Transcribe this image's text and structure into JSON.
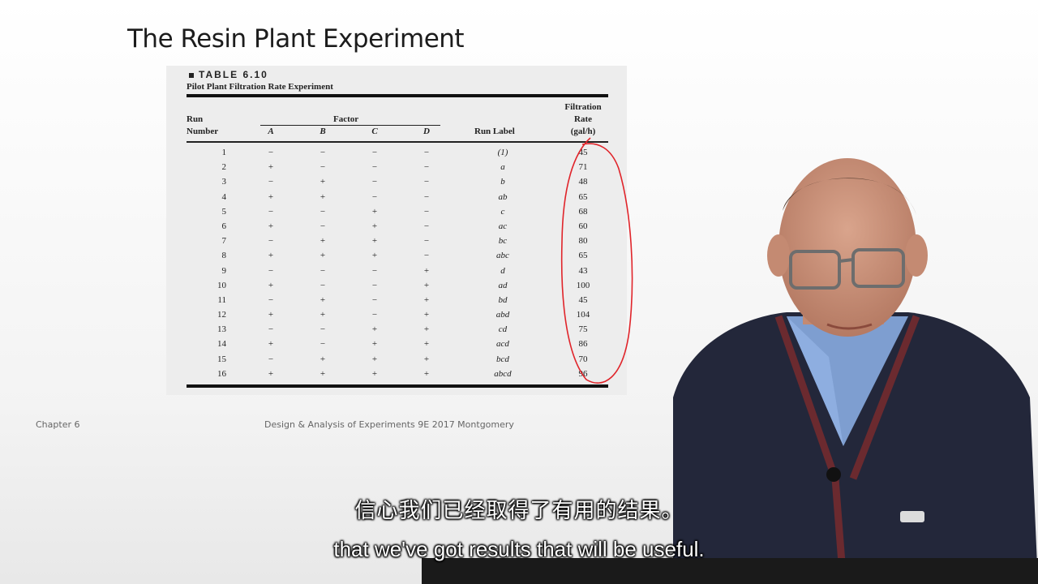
{
  "slide": {
    "title": "The Resin Plant Experiment",
    "footer_left": "Chapter 6",
    "footer_center": "Design & Analysis of Experiments 9E 2017 Montgomery"
  },
  "table": {
    "number": "TABLE 6.10",
    "caption": "Pilot Plant Filtration Rate Experiment",
    "header_run": "Run",
    "header_number": "Number",
    "header_factor": "Factor",
    "header_run_label": "Run Label",
    "header_rate_1": "Filtration",
    "header_rate_2": "Rate",
    "header_rate_3": "(gal/h)",
    "factors": [
      "A",
      "B",
      "C",
      "D"
    ],
    "rows": [
      {
        "run": "1",
        "a": "−",
        "b": "−",
        "c": "−",
        "d": "−",
        "label": "(1)",
        "rate": "45"
      },
      {
        "run": "2",
        "a": "+",
        "b": "−",
        "c": "−",
        "d": "−",
        "label": "a",
        "rate": "71"
      },
      {
        "run": "3",
        "a": "−",
        "b": "+",
        "c": "−",
        "d": "−",
        "label": "b",
        "rate": "48"
      },
      {
        "run": "4",
        "a": "+",
        "b": "+",
        "c": "−",
        "d": "−",
        "label": "ab",
        "rate": "65"
      },
      {
        "run": "5",
        "a": "−",
        "b": "−",
        "c": "+",
        "d": "−",
        "label": "c",
        "rate": "68"
      },
      {
        "run": "6",
        "a": "+",
        "b": "−",
        "c": "+",
        "d": "−",
        "label": "ac",
        "rate": "60"
      },
      {
        "run": "7",
        "a": "−",
        "b": "+",
        "c": "+",
        "d": "−",
        "label": "bc",
        "rate": "80"
      },
      {
        "run": "8",
        "a": "+",
        "b": "+",
        "c": "+",
        "d": "−",
        "label": "abc",
        "rate": "65"
      },
      {
        "run": "9",
        "a": "−",
        "b": "−",
        "c": "−",
        "d": "+",
        "label": "d",
        "rate": "43"
      },
      {
        "run": "10",
        "a": "+",
        "b": "−",
        "c": "−",
        "d": "+",
        "label": "ad",
        "rate": "100"
      },
      {
        "run": "11",
        "a": "−",
        "b": "+",
        "c": "−",
        "d": "+",
        "label": "bd",
        "rate": "45"
      },
      {
        "run": "12",
        "a": "+",
        "b": "+",
        "c": "−",
        "d": "+",
        "label": "abd",
        "rate": "104"
      },
      {
        "run": "13",
        "a": "−",
        "b": "−",
        "c": "+",
        "d": "+",
        "label": "cd",
        "rate": "75"
      },
      {
        "run": "14",
        "a": "+",
        "b": "−",
        "c": "+",
        "d": "+",
        "label": "acd",
        "rate": "86"
      },
      {
        "run": "15",
        "a": "−",
        "b": "+",
        "c": "+",
        "d": "+",
        "label": "bcd",
        "rate": "70"
      },
      {
        "run": "16",
        "a": "+",
        "b": "+",
        "c": "+",
        "d": "+",
        "label": "abcd",
        "rate": "96"
      }
    ]
  },
  "annotation": {
    "color": "#e0242a"
  },
  "subtitles": {
    "chinese": "信心我们已经取得了有用的结果。",
    "english": "that we've got results that will be useful."
  }
}
